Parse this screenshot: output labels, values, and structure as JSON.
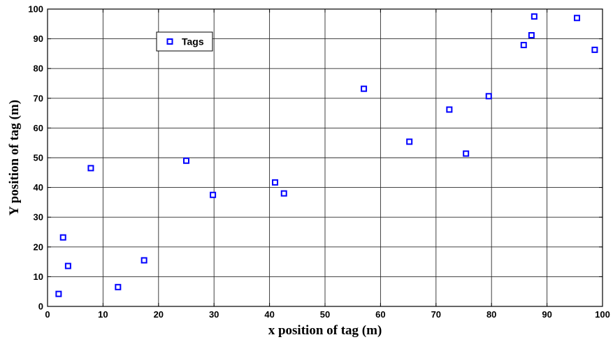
{
  "chart_data": {
    "type": "scatter",
    "title": "",
    "xlabel": "x position of tag (m)",
    "ylabel": "Y position of tag (m)",
    "xlim": [
      0,
      100
    ],
    "ylim": [
      0,
      100
    ],
    "x_ticks": [
      0,
      10,
      20,
      30,
      40,
      50,
      60,
      70,
      80,
      90,
      100
    ],
    "y_ticks": [
      0,
      10,
      20,
      30,
      40,
      50,
      60,
      70,
      80,
      90,
      100
    ],
    "grid": true,
    "legend_position": "top-left",
    "marker": "square",
    "marker_color": "#0000ff",
    "series": [
      {
        "name": "Tags",
        "x": [
          2,
          2.8,
          3.7,
          7.8,
          12.7,
          17.4,
          25,
          29.8,
          41,
          42.6,
          57,
          65.2,
          72.4,
          75.4,
          79.5,
          85.8,
          87.2,
          87.7,
          95.4,
          98.6
        ],
        "y": [
          4.2,
          23.2,
          13.6,
          46.5,
          6.5,
          15.5,
          49,
          37.5,
          41.7,
          38,
          73.2,
          55.4,
          66.2,
          51.4,
          70.7,
          87.9,
          91.2,
          97.5,
          97,
          86.3
        ]
      }
    ]
  }
}
